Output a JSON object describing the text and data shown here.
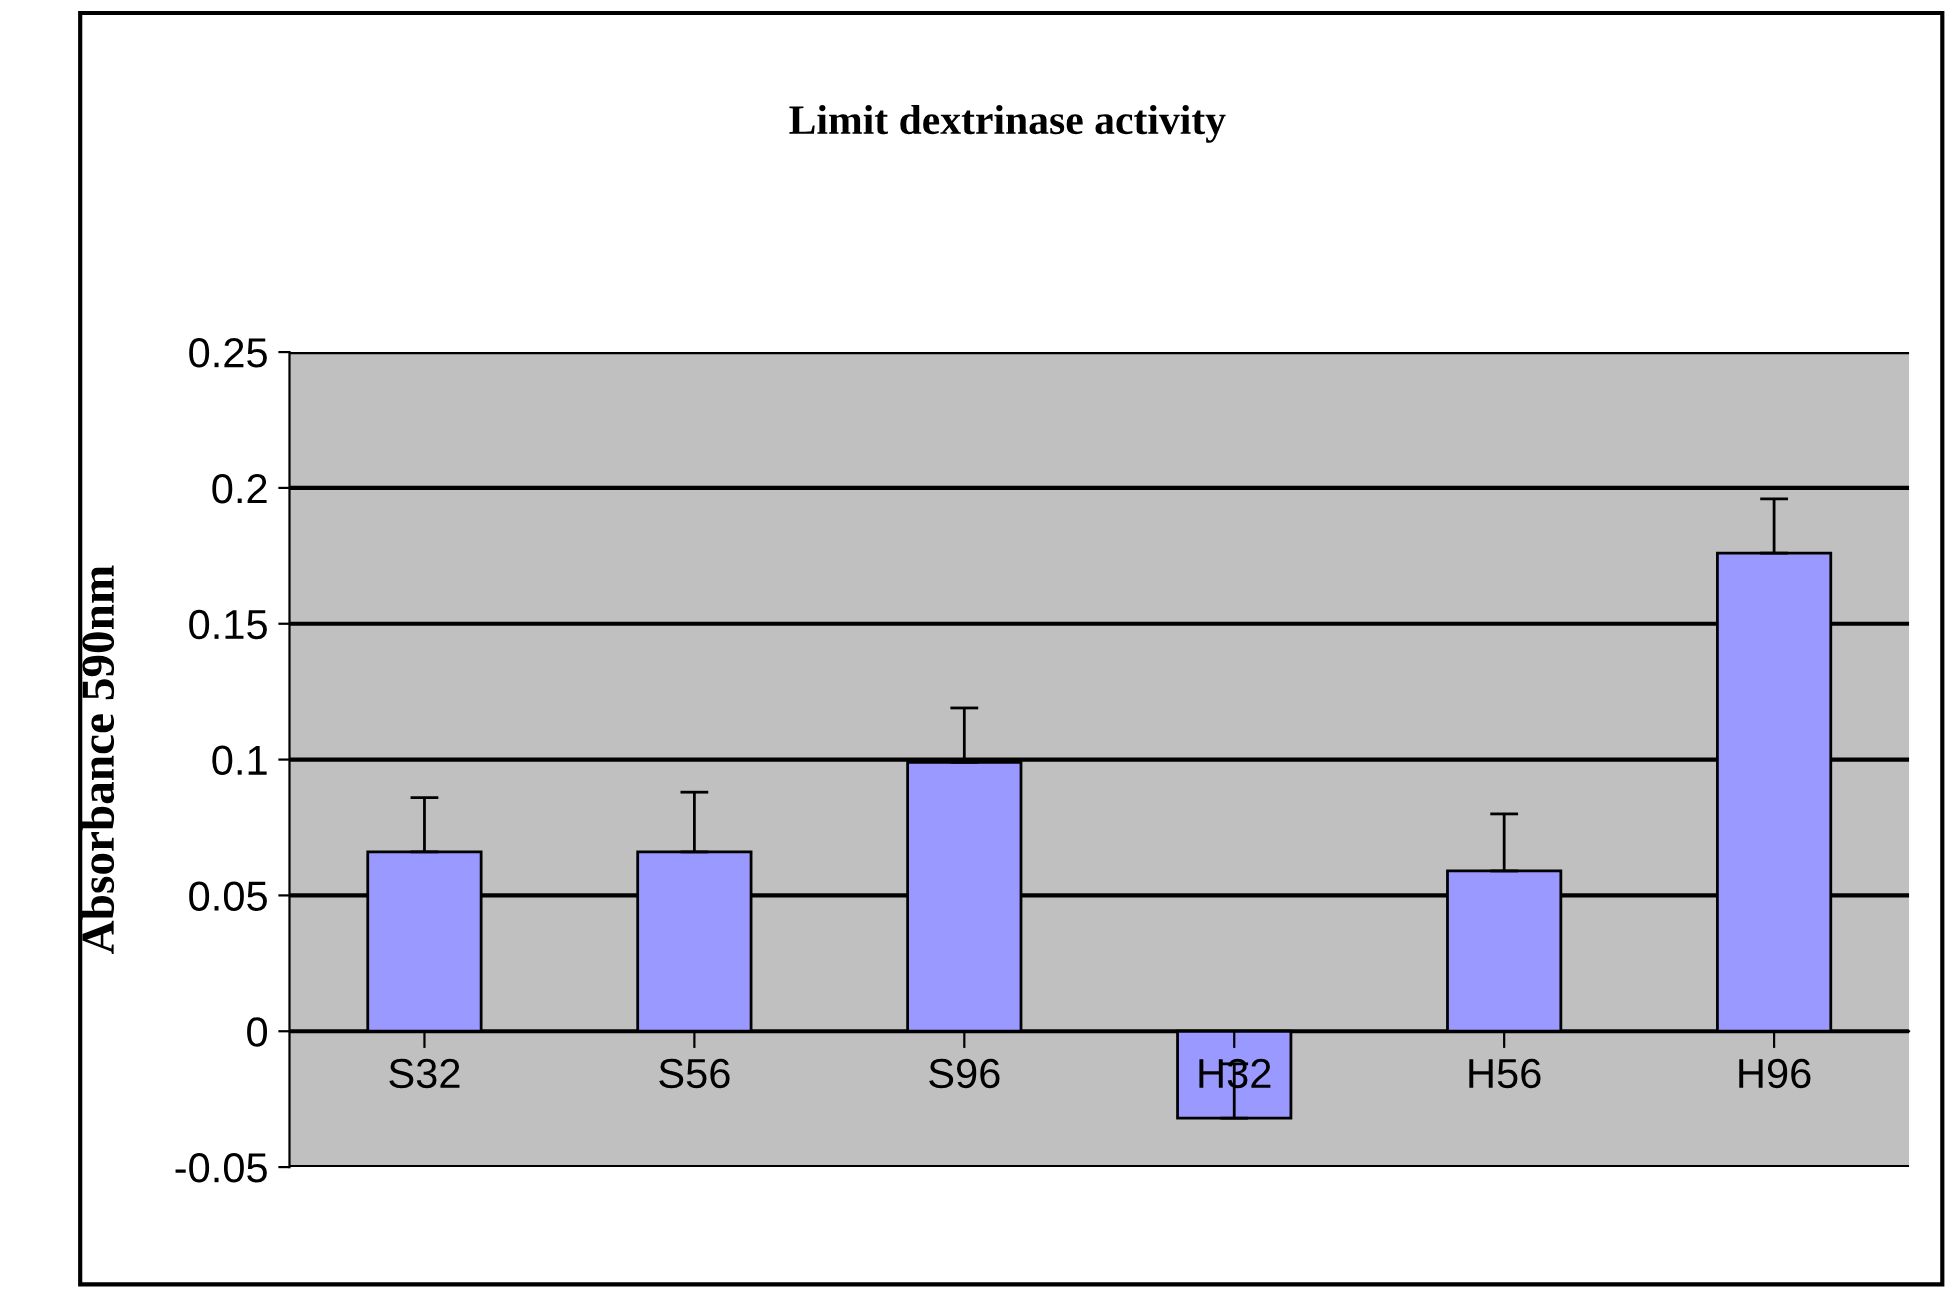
{
  "chart_data": {
    "type": "bar",
    "title": "Limit dextrinase activity",
    "ylabel": "Absorbance 590nm",
    "categories": [
      "S32",
      "S56",
      "S96",
      "H32",
      "H56",
      "H96"
    ],
    "values": [
      0.066,
      0.066,
      0.099,
      -0.032,
      0.059,
      0.176
    ],
    "errors": [
      [
        0.066,
        0.086
      ],
      [
        0.066,
        0.088
      ],
      [
        0.099,
        0.119
      ],
      [
        -0.032,
        -0.012
      ],
      [
        0.059,
        0.08
      ],
      [
        0.176,
        0.196
      ]
    ],
    "color": "#9999ff",
    "ylim": [
      -0.05,
      0.25
    ],
    "yticks": [
      -0.05,
      0,
      0.05,
      0.1,
      0.15,
      0.2,
      0.25
    ],
    "grid": "y",
    "legend": false
  }
}
